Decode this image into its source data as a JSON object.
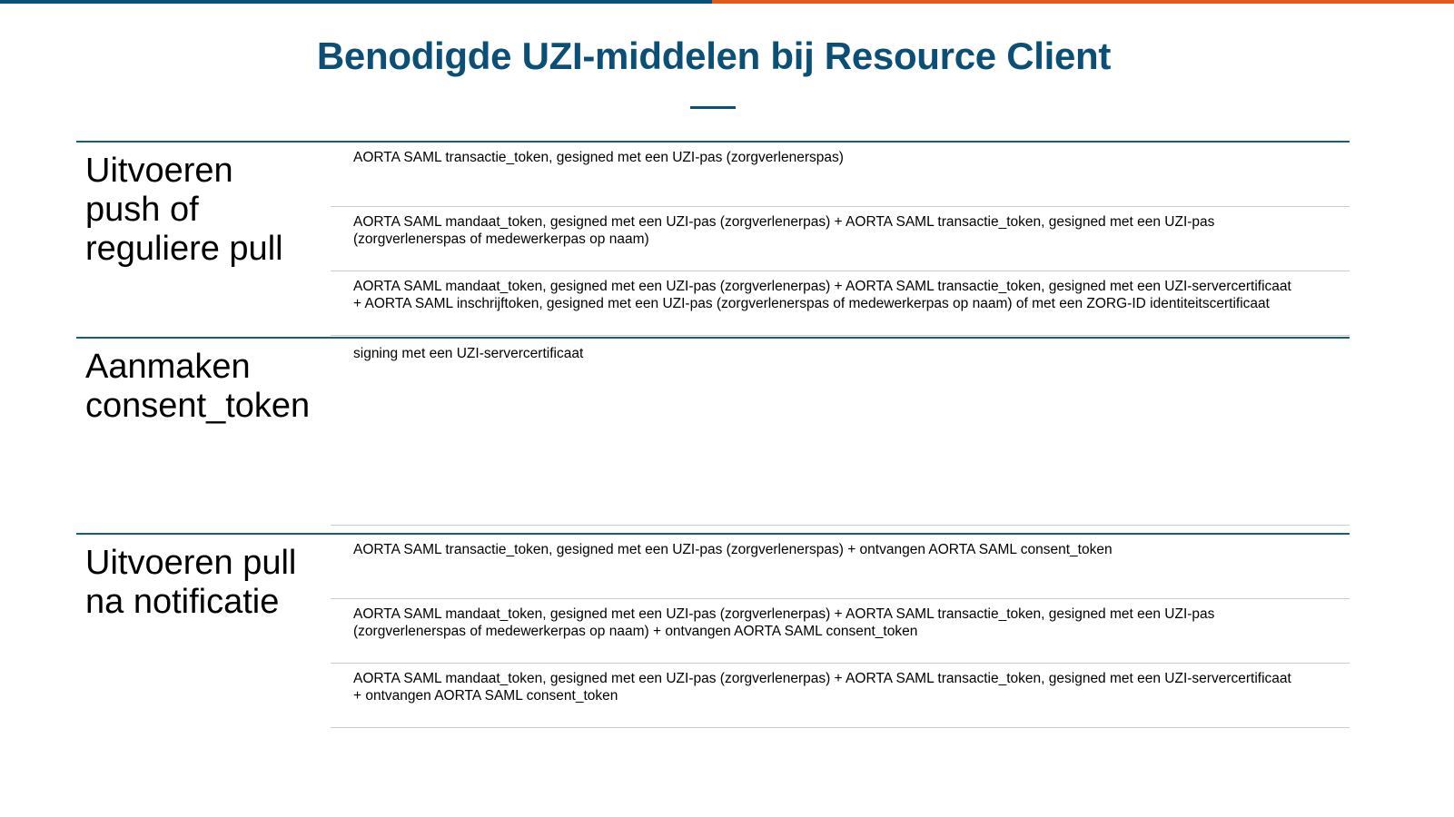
{
  "colors": {
    "accent_blue": "#03507a",
    "accent_orange": "#e35a17",
    "title": "#0b4f77"
  },
  "title": "Benodigde UZI-middelen bij Resource Client",
  "sections": [
    {
      "label": "Uitvoeren push of reguliere pull",
      "label_lines": [
        "Uitvoeren",
        "push of",
        "reguliere pull"
      ],
      "rows": [
        {
          "lines": [
            "AORTA SAML transactie_token, gesigned met een UZI-pas (zorgverlenerspas)"
          ]
        },
        {
          "lines": [
            "AORTA SAML mandaat_token, gesigned met een UZI-pas (zorgverlenerpas) + AORTA SAML transactie_token, gesigned met een UZI-pas",
            "(zorgverlenerspas of medewerkerpas op naam)"
          ]
        },
        {
          "lines": [
            "AORTA SAML mandaat_token, gesigned met een UZI-pas (zorgverlenerpas) + AORTA SAML transactie_token, gesigned met een UZI-servercertificaat",
            "+ AORTA SAML inschrijftoken, gesigned met een UZI-pas (zorgverlenerspas of medewerkerpas op naam) of met een ZORG-ID identiteitscertificaat"
          ]
        }
      ]
    },
    {
      "label": "Aanmaken consent_token",
      "label_lines": [
        "Aanmaken",
        "consent_token"
      ],
      "rows": [
        {
          "lines": [
            "signing met een UZI-servercertificaat"
          ]
        }
      ]
    },
    {
      "label": "Uitvoeren pull na notificatie",
      "label_lines": [
        "Uitvoeren pull",
        "na notificatie"
      ],
      "rows": [
        {
          "lines": [
            "AORTA SAML transactie_token, gesigned met een UZI-pas (zorgverlenerspas) + ontvangen AORTA SAML consent_token"
          ]
        },
        {
          "lines": [
            "AORTA SAML mandaat_token, gesigned met een UZI-pas (zorgverlenerpas) + AORTA SAML transactie_token, gesigned met een UZI-pas",
            "(zorgverlenerspas of medewerkerpas op naam) + ontvangen AORTA SAML consent_token"
          ]
        },
        {
          "lines": [
            "AORTA SAML mandaat_token, gesigned met een UZI-pas (zorgverlenerpas) + AORTA SAML transactie_token, gesigned met een UZI-servercertificaat",
            "+ ontvangen AORTA SAML consent_token"
          ]
        }
      ]
    }
  ]
}
